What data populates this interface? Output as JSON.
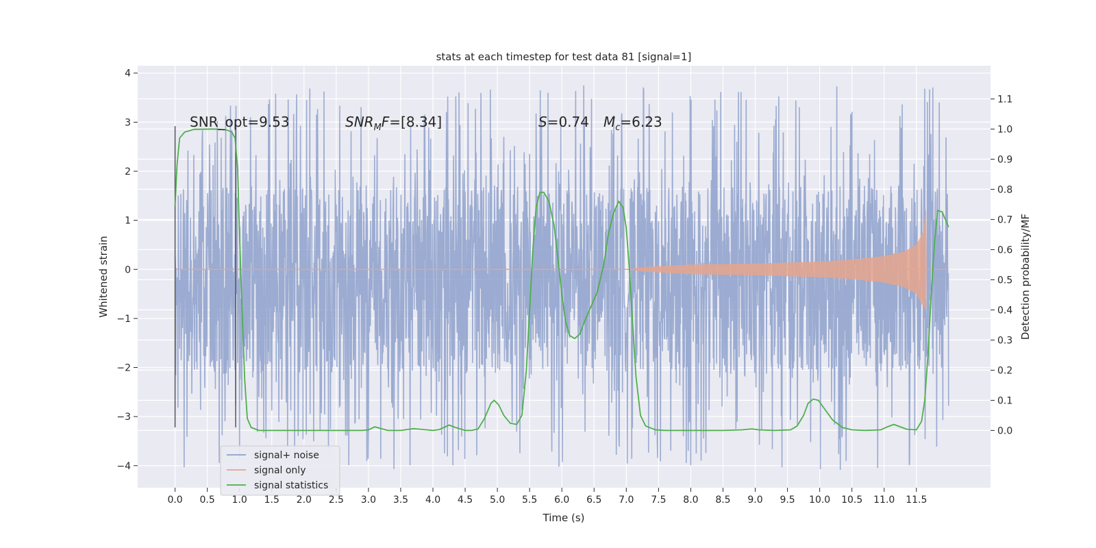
{
  "chart_data": {
    "type": "line",
    "title": "stats at each timestep for test data 81 [signal=1]",
    "xlabel": "Time (s)",
    "ylabel": "Whitened strain",
    "ylabel_right": "Detection probability/MF",
    "xlim": [
      -0.58,
      12.65
    ],
    "ylim": [
      -4.45,
      4.15
    ],
    "ylim_right": [
      -0.19,
      1.21
    ],
    "x_ticks": [
      0.0,
      0.5,
      1.0,
      1.5,
      2.0,
      2.5,
      3.0,
      3.5,
      4.0,
      4.5,
      5.0,
      5.5,
      6.0,
      6.5,
      7.0,
      7.5,
      8.0,
      8.5,
      9.0,
      9.5,
      10.0,
      10.5,
      11.0,
      11.5
    ],
    "x_tick_labels": [
      "0.0",
      "0.5",
      "1.0",
      "1.5",
      "2.0",
      "2.5",
      "3.0",
      "3.5",
      "4.0",
      "4.5",
      "5.0",
      "5.5",
      "6.0",
      "6.5",
      "7.0",
      "7.5",
      "8.0",
      "8.5",
      "9.0",
      "9.5",
      "10.0",
      "10.5",
      "11.0",
      "11.5"
    ],
    "y_ticks": [
      -4,
      -3,
      -2,
      -1,
      0,
      1,
      2,
      3,
      4
    ],
    "y_tick_labels": [
      "−4",
      "−3",
      "−2",
      "−1",
      "0",
      "1",
      "2",
      "3",
      "4"
    ],
    "y_right_ticks": [
      0.0,
      0.1,
      0.2,
      0.3,
      0.4,
      0.5,
      0.6,
      0.7,
      0.8,
      0.9,
      1.0,
      1.1
    ],
    "y_right_tick_labels": [
      "0.0",
      "0.1",
      "0.2",
      "0.3",
      "0.4",
      "0.5",
      "0.6",
      "0.7",
      "0.8",
      "0.9",
      "1.0",
      "1.1"
    ],
    "grid": true,
    "legend_position": "lower-left",
    "legend": [
      "signal+ noise",
      "signal only",
      "signal statistics"
    ],
    "annotations": {
      "snr_opt": "SNR_opt=9.53",
      "snr_mf_sym": "SNR",
      "snr_mf_sub": "M",
      "snr_mf_f": "F",
      "snr_mf_val": "=[8.34]",
      "s_sym": "S",
      "s_val": "=0.74",
      "mc_sym": "M",
      "mc_sub": "c",
      "mc_val": "=6.23"
    },
    "vlines": [
      0.0,
      0.94
    ],
    "series": [
      {
        "name": "signal+ noise",
        "axis": "left",
        "color": "#8da0cb",
        "t_range": [
          0.0,
          12.0
        ],
        "band_y": [
          -2.1,
          1.7
        ],
        "peak_range": [
          -4.1,
          3.75
        ]
      },
      {
        "name": "signal only",
        "axis": "left",
        "color": "#e5a48d",
        "t_range": [
          0.0,
          12.0
        ],
        "envelope": [
          {
            "x": 0.0,
            "y": 0.0
          },
          {
            "x": 7.0,
            "y": 0.0
          },
          {
            "x": 7.3,
            "y": 0.05
          },
          {
            "x": 8.0,
            "y": 0.1
          },
          {
            "x": 9.0,
            "y": 0.12
          },
          {
            "x": 10.0,
            "y": 0.16
          },
          {
            "x": 10.5,
            "y": 0.2
          },
          {
            "x": 11.0,
            "y": 0.27
          },
          {
            "x": 11.3,
            "y": 0.36
          },
          {
            "x": 11.5,
            "y": 0.5
          },
          {
            "x": 11.6,
            "y": 0.75
          },
          {
            "x": 11.65,
            "y": 1.25
          },
          {
            "x": 11.66,
            "y": 0.0
          }
        ]
      },
      {
        "name": "signal statistics",
        "axis": "right",
        "color": "#4daf4a",
        "points": [
          {
            "x": 0.0,
            "y": 0.745
          },
          {
            "x": 0.03,
            "y": 0.88
          },
          {
            "x": 0.07,
            "y": 0.97
          },
          {
            "x": 0.15,
            "y": 0.99
          },
          {
            "x": 0.3,
            "y": 0.999
          },
          {
            "x": 0.6,
            "y": 1.0
          },
          {
            "x": 0.8,
            "y": 0.997
          },
          {
            "x": 0.88,
            "y": 0.99
          },
          {
            "x": 0.93,
            "y": 0.97
          },
          {
            "x": 0.97,
            "y": 0.87
          },
          {
            "x": 1.0,
            "y": 0.65
          },
          {
            "x": 1.04,
            "y": 0.4
          },
          {
            "x": 1.08,
            "y": 0.17
          },
          {
            "x": 1.12,
            "y": 0.04
          },
          {
            "x": 1.18,
            "y": 0.01
          },
          {
            "x": 1.3,
            "y": 0.0
          },
          {
            "x": 1.5,
            "y": 0.0
          },
          {
            "x": 2.0,
            "y": 0.0
          },
          {
            "x": 2.5,
            "y": 0.0
          },
          {
            "x": 2.9,
            "y": 0.0
          },
          {
            "x": 3.0,
            "y": 0.002
          },
          {
            "x": 3.1,
            "y": 0.012
          },
          {
            "x": 3.2,
            "y": 0.006
          },
          {
            "x": 3.3,
            "y": 0.0
          },
          {
            "x": 3.5,
            "y": 0.0
          },
          {
            "x": 3.7,
            "y": 0.006
          },
          {
            "x": 3.8,
            "y": 0.004
          },
          {
            "x": 4.0,
            "y": 0.0
          },
          {
            "x": 4.1,
            "y": 0.003
          },
          {
            "x": 4.25,
            "y": 0.018
          },
          {
            "x": 4.35,
            "y": 0.01
          },
          {
            "x": 4.5,
            "y": 0.0
          },
          {
            "x": 4.6,
            "y": 0.0
          },
          {
            "x": 4.7,
            "y": 0.005
          },
          {
            "x": 4.8,
            "y": 0.04
          },
          {
            "x": 4.9,
            "y": 0.09
          },
          {
            "x": 4.95,
            "y": 0.1
          },
          {
            "x": 5.02,
            "y": 0.085
          },
          {
            "x": 5.1,
            "y": 0.05
          },
          {
            "x": 5.2,
            "y": 0.024
          },
          {
            "x": 5.3,
            "y": 0.02
          },
          {
            "x": 5.38,
            "y": 0.05
          },
          {
            "x": 5.45,
            "y": 0.2
          },
          {
            "x": 5.5,
            "y": 0.4
          },
          {
            "x": 5.55,
            "y": 0.6
          },
          {
            "x": 5.6,
            "y": 0.74
          },
          {
            "x": 5.66,
            "y": 0.79
          },
          {
            "x": 5.72,
            "y": 0.79
          },
          {
            "x": 5.8,
            "y": 0.76
          },
          {
            "x": 5.88,
            "y": 0.68
          },
          {
            "x": 5.94,
            "y": 0.57
          },
          {
            "x": 6.0,
            "y": 0.45
          },
          {
            "x": 6.06,
            "y": 0.36
          },
          {
            "x": 6.12,
            "y": 0.315
          },
          {
            "x": 6.2,
            "y": 0.305
          },
          {
            "x": 6.28,
            "y": 0.32
          },
          {
            "x": 6.35,
            "y": 0.36
          },
          {
            "x": 6.45,
            "y": 0.41
          },
          {
            "x": 6.55,
            "y": 0.46
          },
          {
            "x": 6.65,
            "y": 0.55
          },
          {
            "x": 6.72,
            "y": 0.65
          },
          {
            "x": 6.8,
            "y": 0.72
          },
          {
            "x": 6.88,
            "y": 0.76
          },
          {
            "x": 6.95,
            "y": 0.74
          },
          {
            "x": 7.0,
            "y": 0.67
          },
          {
            "x": 7.05,
            "y": 0.53
          },
          {
            "x": 7.1,
            "y": 0.35
          },
          {
            "x": 7.15,
            "y": 0.18
          },
          {
            "x": 7.22,
            "y": 0.05
          },
          {
            "x": 7.3,
            "y": 0.015
          },
          {
            "x": 7.45,
            "y": 0.002
          },
          {
            "x": 7.6,
            "y": 0.0
          },
          {
            "x": 8.0,
            "y": 0.0
          },
          {
            "x": 8.5,
            "y": 0.0
          },
          {
            "x": 8.8,
            "y": 0.002
          },
          {
            "x": 8.95,
            "y": 0.005
          },
          {
            "x": 9.05,
            "y": 0.002
          },
          {
            "x": 9.3,
            "y": 0.0
          },
          {
            "x": 9.55,
            "y": 0.002
          },
          {
            "x": 9.65,
            "y": 0.015
          },
          {
            "x": 9.75,
            "y": 0.05
          },
          {
            "x": 9.82,
            "y": 0.09
          },
          {
            "x": 9.9,
            "y": 0.104
          },
          {
            "x": 9.98,
            "y": 0.1
          },
          {
            "x": 10.08,
            "y": 0.07
          },
          {
            "x": 10.2,
            "y": 0.035
          },
          {
            "x": 10.35,
            "y": 0.01
          },
          {
            "x": 10.5,
            "y": 0.002
          },
          {
            "x": 10.7,
            "y": 0.0
          },
          {
            "x": 10.95,
            "y": 0.002
          },
          {
            "x": 11.05,
            "y": 0.012
          },
          {
            "x": 11.15,
            "y": 0.02
          },
          {
            "x": 11.25,
            "y": 0.012
          },
          {
            "x": 11.35,
            "y": 0.004
          },
          {
            "x": 11.5,
            "y": 0.002
          },
          {
            "x": 11.58,
            "y": 0.03
          },
          {
            "x": 11.63,
            "y": 0.1
          },
          {
            "x": 11.68,
            "y": 0.25
          },
          {
            "x": 11.73,
            "y": 0.45
          },
          {
            "x": 11.78,
            "y": 0.62
          },
          {
            "x": 11.83,
            "y": 0.73
          },
          {
            "x": 11.9,
            "y": 0.725
          },
          {
            "x": 11.95,
            "y": 0.7
          },
          {
            "x": 12.0,
            "y": 0.675
          }
        ]
      }
    ]
  }
}
